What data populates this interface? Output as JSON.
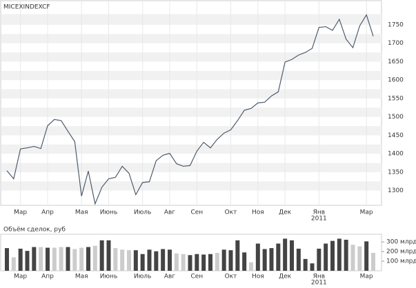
{
  "chart_data": [
    {
      "type": "line",
      "title": "MICEXINDEXCF",
      "categories": [
        null,
        null,
        "Мар",
        null,
        null,
        null,
        "Апр",
        null,
        null,
        null,
        null,
        "Мая",
        null,
        null,
        null,
        "Июнь",
        null,
        null,
        null,
        null,
        "Июль",
        null,
        null,
        null,
        "Авг",
        null,
        null,
        null,
        "Сен",
        null,
        null,
        null,
        null,
        "Окт",
        null,
        null,
        null,
        "Ноя",
        null,
        null,
        null,
        "Дек",
        null,
        null,
        null,
        null,
        "Янв",
        null,
        null,
        null,
        null,
        null,
        null,
        "Мар",
        null
      ],
      "year_label": "2011",
      "series": [
        {
          "name": "MICEXINDEXCF",
          "color": "#4d5b6b",
          "values": [
            1354,
            1332,
            1413,
            1416,
            1420,
            1414,
            1476,
            1493,
            1490,
            1461,
            1433,
            1285,
            1353,
            1264,
            1309,
            1332,
            1336,
            1366,
            1347,
            1289,
            1322,
            1324,
            1381,
            1396,
            1401,
            1373,
            1366,
            1368,
            1407,
            1431,
            1416,
            1439,
            1456,
            1465,
            1490,
            1518,
            1523,
            1538,
            1540,
            1557,
            1568,
            1649,
            1656,
            1668,
            1675,
            1686,
            1743,
            1745,
            1735,
            1765,
            1711,
            1688,
            1747,
            1777,
            1719
          ]
        }
      ],
      "ylim": [
        1260,
        1808
      ],
      "yticks": [
        1300,
        1350,
        1400,
        1450,
        1500,
        1550,
        1600,
        1650,
        1700,
        1750
      ],
      "grid": true
    },
    {
      "type": "bar",
      "title": "Объём сделок, руб",
      "categories": [
        null,
        null,
        "Мар",
        null,
        null,
        null,
        "Апр",
        null,
        null,
        null,
        null,
        "Мая",
        null,
        null,
        null,
        "Июнь",
        null,
        null,
        null,
        null,
        "Июль",
        null,
        null,
        null,
        "Авг",
        null,
        null,
        null,
        "Сен",
        null,
        null,
        null,
        null,
        "Окт",
        null,
        null,
        null,
        "Ноя",
        null,
        null,
        null,
        "Дек",
        null,
        null,
        null,
        null,
        "Янв",
        null,
        null,
        null,
        null,
        null,
        null,
        "Мар",
        null
      ],
      "year_label": "2011",
      "values": [
        236,
        140,
        230,
        207,
        247,
        247,
        240,
        240,
        247,
        247,
        226,
        240,
        247,
        260,
        317,
        317,
        236,
        220,
        214,
        214,
        174,
        220,
        203,
        226,
        220,
        180,
        174,
        163,
        174,
        169,
        174,
        186,
        220,
        214,
        317,
        191,
        89,
        283,
        226,
        236,
        283,
        334,
        317,
        230,
        123,
        77,
        230,
        283,
        311,
        334,
        323,
        271,
        254,
        306,
        186
      ],
      "colors": [
        "#444",
        "#ccc",
        "#444",
        "#444",
        "#444",
        "#ccc",
        "#444",
        "#ccc",
        "#ccc",
        "#444",
        "#ccc",
        "#ccc",
        "#444",
        "#ccc",
        "#444",
        "#444",
        "#ccc",
        "#ccc",
        "#ccc",
        "#444",
        "#444",
        "#444",
        "#444",
        "#444",
        "#444",
        "#ccc",
        "#ccc",
        "#444",
        "#444",
        "#444",
        "#444",
        "#ccc",
        "#444",
        "#444",
        "#444",
        "#444",
        "#ccc",
        "#444",
        "#444",
        "#444",
        "#444",
        "#444",
        "#444",
        "#444",
        "#444",
        "#444",
        "#444",
        "#444",
        "#444",
        "#444",
        "#444",
        "#ccc",
        "#ccc",
        "#444",
        "#ccc"
      ],
      "ylim": [
        0,
        380
      ],
      "yticks": [
        {
          "value": 100,
          "label": "100 млрд"
        },
        {
          "value": 200,
          "label": "200 млрд"
        },
        {
          "value": 300,
          "label": "300 млрд"
        }
      ]
    }
  ]
}
